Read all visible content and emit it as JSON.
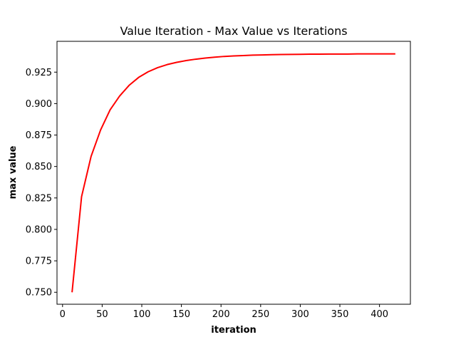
{
  "chart_data": {
    "type": "line",
    "title": "Value Iteration - Max Value vs Iterations",
    "xlabel": "iteration",
    "ylabel": "max value",
    "xlim": [
      -7,
      439
    ],
    "ylim": [
      0.7405,
      0.9495
    ],
    "xticks": [
      0,
      50,
      100,
      150,
      200,
      250,
      300,
      350,
      400
    ],
    "yticks": [
      0.75,
      0.775,
      0.8,
      0.825,
      0.85,
      0.875,
      0.9,
      0.925
    ],
    "ytick_labels": [
      "0.750",
      "0.775",
      "0.800",
      "0.825",
      "0.850",
      "0.875",
      "0.900",
      "0.925"
    ],
    "grid": false,
    "legend": "none",
    "series": [
      {
        "color": "#ff0000",
        "x": [
          12,
          24,
          36,
          48,
          60,
          72,
          84,
          96,
          108,
          120,
          132,
          144,
          156,
          168,
          180,
          192,
          204,
          216,
          228,
          240,
          252,
          264,
          276,
          288,
          300,
          312,
          324,
          336,
          348,
          360,
          372,
          384,
          396,
          408,
          420
        ],
        "y": [
          0.75,
          0.826,
          0.858,
          0.879,
          0.895,
          0.906,
          0.9145,
          0.9208,
          0.9253,
          0.9286,
          0.931,
          0.9328,
          0.9342,
          0.9353,
          0.9362,
          0.9369,
          0.9375,
          0.9379,
          0.9382,
          0.9385,
          0.9387,
          0.9389,
          0.939,
          0.9391,
          0.9392,
          0.9393,
          0.9393,
          0.9394,
          0.9394,
          0.9394,
          0.9395,
          0.9395,
          0.9395,
          0.9395,
          0.9395
        ]
      }
    ]
  }
}
